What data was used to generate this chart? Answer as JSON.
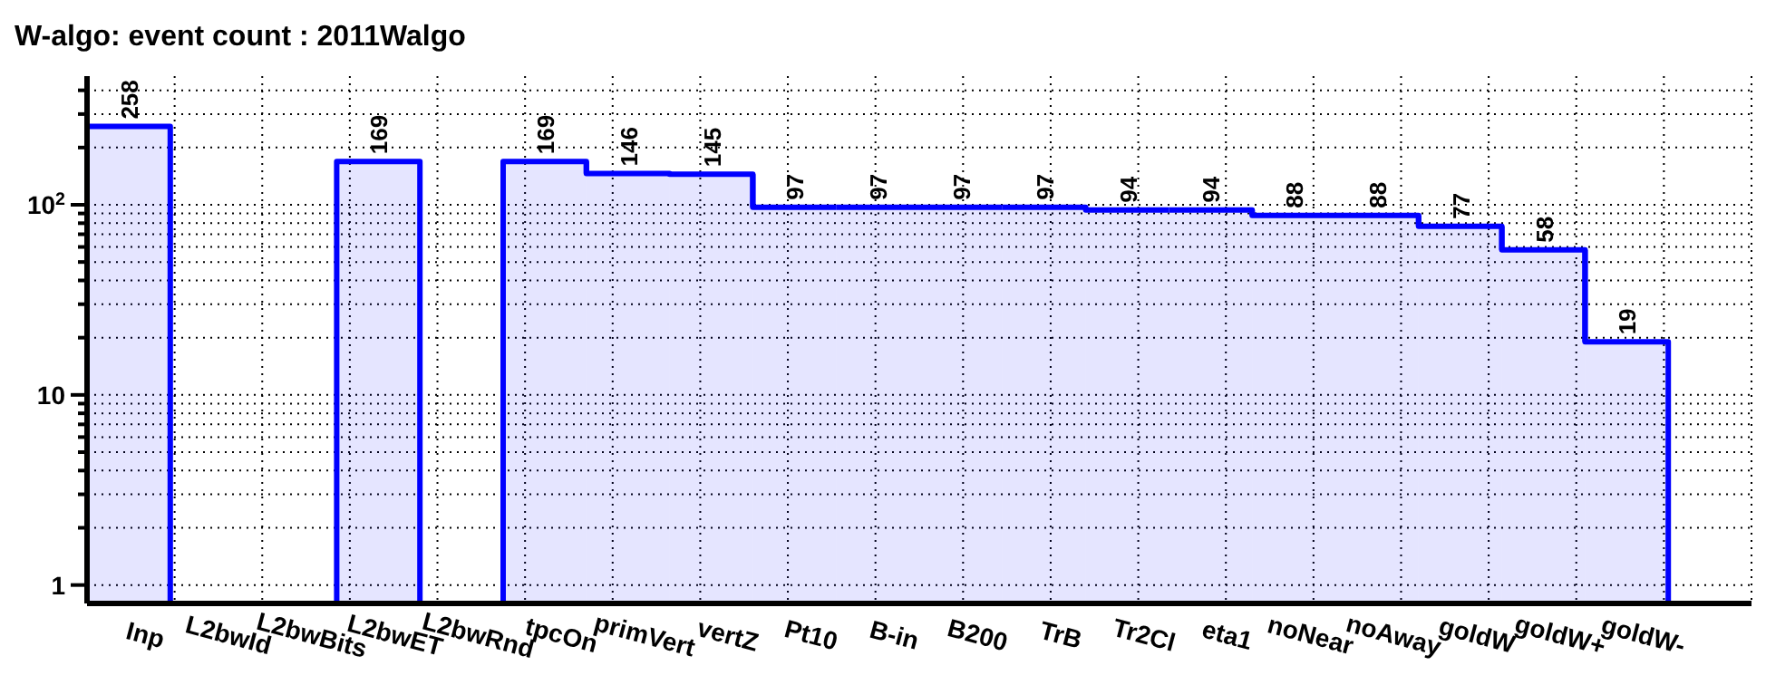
{
  "chart_data": {
    "type": "bar",
    "title": "W-algo: event count : 2011Walgo",
    "categories": [
      "Inp",
      "L2bwId",
      "L2bwBits",
      "L2bwET",
      "L2bwRnd",
      "tpcOn",
      "primVert",
      "vertZ",
      "Pt10",
      "B-in",
      "B200",
      "TrB",
      "Tr2Cl",
      "eta1",
      "noNear",
      "noAway",
      "goldW",
      "goldW+",
      "goldW-",
      null
    ],
    "values": [
      258,
      null,
      null,
      169,
      null,
      169,
      146,
      145,
      97,
      97,
      97,
      97,
      94,
      94,
      88,
      88,
      77,
      58,
      19,
      null
    ],
    "color": "#0000ff",
    "log": true,
    "ylim": [
      0.8,
      475
    ],
    "yticks": [
      {
        "value": 1,
        "label": "1"
      },
      {
        "value": 2,
        "label": null
      },
      {
        "value": 3,
        "label": null
      },
      {
        "value": 4,
        "label": null
      },
      {
        "value": 5,
        "label": null
      },
      {
        "value": 6,
        "label": null
      },
      {
        "value": 7,
        "label": null
      },
      {
        "value": 8,
        "label": null
      },
      {
        "value": 9,
        "label": null
      },
      {
        "value": 10,
        "label": "10"
      },
      {
        "value": 20,
        "label": null
      },
      {
        "value": 30,
        "label": null
      },
      {
        "value": 40,
        "label": null
      },
      {
        "value": 50,
        "label": null
      },
      {
        "value": 60,
        "label": null
      },
      {
        "value": 70,
        "label": null
      },
      {
        "value": 80,
        "label": null
      },
      {
        "value": 90,
        "label": null
      },
      {
        "value": 100,
        "label": "10$^{2}$"
      },
      {
        "value": 200,
        "label": null
      },
      {
        "value": 300,
        "label": null
      },
      {
        "value": 400,
        "label": null
      }
    ],
    "grid": true,
    "data_labels": true
  }
}
